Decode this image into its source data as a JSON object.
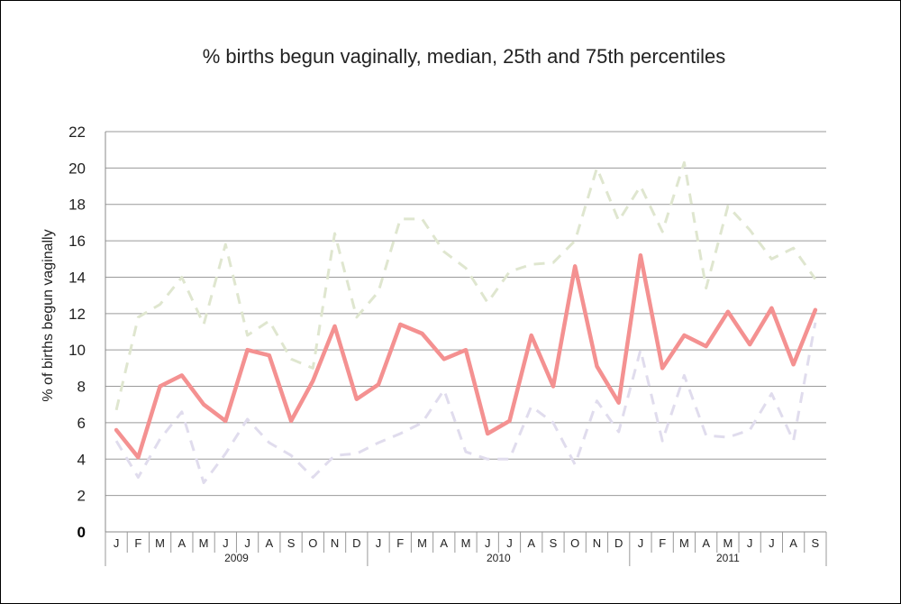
{
  "chart_data": {
    "type": "line",
    "title": "% births begun vaginally, median, 25th and 75th percentiles",
    "ylabel": "% of births  begun vaginally",
    "xlabel": "",
    "ylim": [
      0,
      22
    ],
    "yticks": [
      0,
      2,
      4,
      6,
      8,
      10,
      12,
      14,
      16,
      18,
      20,
      22
    ],
    "grid": true,
    "legend": "none",
    "categories": [
      "J",
      "F",
      "M",
      "A",
      "M",
      "J",
      "J",
      "A",
      "S",
      "O",
      "N",
      "D",
      "J",
      "F",
      "M",
      "A",
      "M",
      "J",
      "J",
      "A",
      "S",
      "O",
      "N",
      "D",
      "J",
      "F",
      "M",
      "A",
      "M",
      "J",
      "J",
      "A",
      "S"
    ],
    "year_groups": [
      {
        "label": "2009",
        "start": 0,
        "count": 12
      },
      {
        "label": "2010",
        "start": 12,
        "count": 12
      },
      {
        "label": "2011",
        "start": 24,
        "count": 9
      }
    ],
    "series": [
      {
        "role": "75th percentile",
        "color": "#dfe6cf",
        "dashed": true,
        "values": [
          6.7,
          11.8,
          12.5,
          14.0,
          11.4,
          15.8,
          10.8,
          11.6,
          9.5,
          9.0,
          16.4,
          11.8,
          13.2,
          17.2,
          17.2,
          15.4,
          14.5,
          12.6,
          14.3,
          14.7,
          14.8,
          16.0,
          20.0,
          17.1,
          19.0,
          16.5,
          20.3,
          13.4,
          17.9,
          16.6,
          15.0,
          15.6,
          13.9
        ]
      },
      {
        "role": "25th percentile",
        "color": "#e0dced",
        "dashed": true,
        "values": [
          5.0,
          3.0,
          5.1,
          6.6,
          2.7,
          4.3,
          6.2,
          4.9,
          4.2,
          3.0,
          4.2,
          4.3,
          4.9,
          5.4,
          6.0,
          7.8,
          4.4,
          4.0,
          4.0,
          6.9,
          6.0,
          3.7,
          7.2,
          5.5,
          10.0,
          5.0,
          8.6,
          5.3,
          5.2,
          5.6,
          7.6,
          5.0,
          11.5
        ]
      },
      {
        "role": "median",
        "color": "#f49191",
        "dashed": false,
        "values": [
          5.6,
          4.1,
          8.0,
          8.6,
          7.0,
          6.1,
          10.0,
          9.7,
          6.1,
          8.3,
          11.3,
          7.3,
          8.1,
          11.4,
          10.9,
          9.5,
          10.0,
          5.4,
          6.1,
          10.8,
          8.0,
          14.6,
          9.1,
          7.1,
          15.2,
          9.0,
          10.8,
          10.2,
          12.1,
          10.3,
          12.3,
          9.2,
          12.2
        ]
      }
    ]
  }
}
